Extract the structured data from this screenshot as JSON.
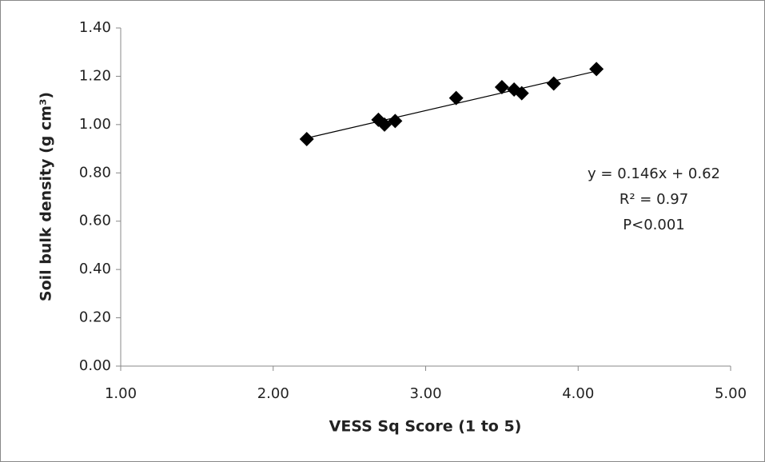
{
  "chart_data": {
    "type": "scatter",
    "x_label": "VESS Sq Score (1 to 5)",
    "y_label": "Soil bulk density (g cm³)",
    "annotations": [
      "y = 0.146x + 0.62",
      "R² = 0.97",
      "P<0.001"
    ],
    "trendline": {
      "slope": 0.146,
      "intercept": 0.62,
      "color": "#000000"
    },
    "series": [
      {
        "color": "#000000",
        "x": [
          2.22,
          2.69,
          2.73,
          2.8,
          3.2,
          3.5,
          3.58,
          3.63,
          3.84,
          4.12
        ],
        "values": [
          0.94,
          1.02,
          1.0,
          1.015,
          1.11,
          1.155,
          1.145,
          1.13,
          1.17,
          1.23
        ]
      }
    ],
    "xlim": [
      1,
      5
    ],
    "xticks": [
      {
        "value": 1,
        "label": "1.00"
      },
      {
        "value": 2,
        "label": "2.00"
      },
      {
        "value": 3,
        "label": "3.00"
      },
      {
        "value": 4,
        "label": "4.00"
      },
      {
        "value": 5,
        "label": "5.00"
      }
    ],
    "ylim": [
      0,
      1.4
    ],
    "yticks": [
      {
        "value": 0,
        "label": "0.00"
      },
      {
        "value": 0.2,
        "label": "0.20"
      },
      {
        "value": 0.4,
        "label": "0.40"
      },
      {
        "value": 0.6,
        "label": "0.60"
      },
      {
        "value": 0.8,
        "label": "0.80"
      },
      {
        "value": 1.0,
        "label": "1.00"
      },
      {
        "value": 1.2,
        "label": "1.20"
      },
      {
        "value": 1.4,
        "label": "1.40"
      }
    ],
    "grid": false
  }
}
